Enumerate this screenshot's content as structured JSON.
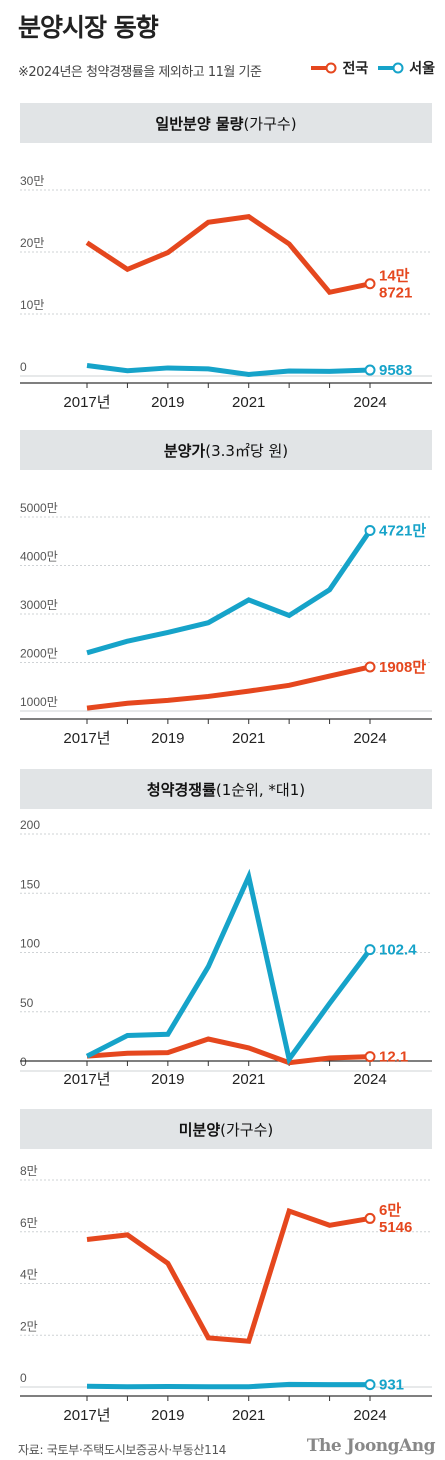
{
  "title": "분양시장 동향",
  "note": "※2024년은 청약경쟁률을 제외하고 11월 기준",
  "legend": [
    {
      "label": "전국",
      "color": "#e5471e"
    },
    {
      "label": "서울",
      "color": "#16a3c9"
    }
  ],
  "source": "자료: 국토부·주택도시보증공사·부동산114",
  "brand": "The JoongAng",
  "chart_data": [
    {
      "type": "line",
      "title": "일반분양 물량",
      "title_suffix": "(가구수)",
      "x": [
        2017,
        2018,
        2019,
        2020,
        2021,
        2022,
        2023,
        2024
      ],
      "x_tick_labels": [
        "2017년",
        "2019",
        "2021",
        "2024"
      ],
      "x_tick_values": [
        2017,
        2019,
        2021,
        2024
      ],
      "ylim": [
        0,
        300000
      ],
      "y_tick_values": [
        0,
        100000,
        200000,
        300000
      ],
      "y_tick_labels": [
        "0",
        "10만",
        "20만",
        "30만"
      ],
      "series": [
        {
          "name": "전국",
          "color": "#e5471e",
          "values": [
            215000,
            172000,
            199000,
            248000,
            257000,
            213000,
            135000,
            148721
          ],
          "end_label": [
            "14만",
            "8721"
          ]
        },
        {
          "name": "서울",
          "color": "#16a3c9",
          "values": [
            17000,
            8500,
            13000,
            11500,
            2500,
            8000,
            7500,
            9583
          ],
          "end_label": [
            "9583"
          ]
        }
      ]
    },
    {
      "type": "line",
      "title": "분양가",
      "title_suffix": "(3.3㎡당 원)",
      "x": [
        2017,
        2018,
        2019,
        2020,
        2021,
        2022,
        2023,
        2024
      ],
      "x_tick_labels": [
        "2017년",
        "2019",
        "2021",
        "2024"
      ],
      "x_tick_values": [
        2017,
        2019,
        2021,
        2024
      ],
      "ylim": [
        1000,
        5000
      ],
      "y_tick_values": [
        1000,
        2000,
        3000,
        4000,
        5000
      ],
      "y_tick_labels": [
        "1000만",
        "2000만",
        "3000만",
        "4000만",
        "5000만"
      ],
      "series": [
        {
          "name": "전국",
          "color": "#e5471e",
          "values": [
            1060,
            1160,
            1220,
            1300,
            1410,
            1530,
            1720,
            1908
          ],
          "end_label": [
            "1908만"
          ]
        },
        {
          "name": "서울",
          "color": "#16a3c9",
          "values": [
            2200,
            2440,
            2620,
            2820,
            3290,
            2970,
            3500,
            4721
          ],
          "end_label": [
            "4721만"
          ]
        }
      ]
    },
    {
      "type": "line",
      "title": "청약경쟁률",
      "title_suffix": "(1순위, *대1)",
      "x": [
        2017,
        2018,
        2019,
        2020,
        2021,
        2022,
        2023,
        2024
      ],
      "x_tick_labels": [
        "2017년",
        "2019",
        "2021",
        "2024"
      ],
      "x_tick_values": [
        2017,
        2019,
        2021,
        2024
      ],
      "ylim": [
        0,
        200
      ],
      "y_tick_values": [
        0,
        50,
        100,
        150,
        200
      ],
      "y_tick_labels": [
        "0",
        "50",
        "100",
        "150",
        "200"
      ],
      "series": [
        {
          "name": "전국",
          "color": "#e5471e",
          "values": [
            12.5,
            15,
            15.5,
            27,
            19.5,
            7,
            11,
            12.1
          ],
          "end_label": [
            "12.1"
          ]
        },
        {
          "name": "서울",
          "color": "#16a3c9",
          "values": [
            12.5,
            30,
            31,
            88,
            164,
            10,
            57,
            102.4
          ],
          "end_label": [
            "102.4"
          ]
        }
      ]
    },
    {
      "type": "line",
      "title": "미분양",
      "title_suffix": "(가구수)",
      "x": [
        2017,
        2018,
        2019,
        2020,
        2021,
        2022,
        2023,
        2024
      ],
      "x_tick_labels": [
        "2017년",
        "2019",
        "2021",
        "2024"
      ],
      "x_tick_values": [
        2017,
        2019,
        2021,
        2024
      ],
      "ylim": [
        0,
        80000
      ],
      "y_tick_values": [
        0,
        20000,
        40000,
        60000,
        80000
      ],
      "y_tick_labels": [
        "0",
        "2만",
        "4만",
        "6만",
        "8만"
      ],
      "series": [
        {
          "name": "전국",
          "color": "#e5471e",
          "values": [
            57000,
            58800,
            47800,
            19000,
            17700,
            68000,
            62500,
            65146
          ],
          "end_label": [
            "6만",
            "5146"
          ]
        },
        {
          "name": "서울",
          "color": "#16a3c9",
          "values": [
            300,
            100,
            200,
            100,
            100,
            1000,
            900,
            931
          ],
          "end_label": [
            "931"
          ]
        }
      ]
    }
  ]
}
